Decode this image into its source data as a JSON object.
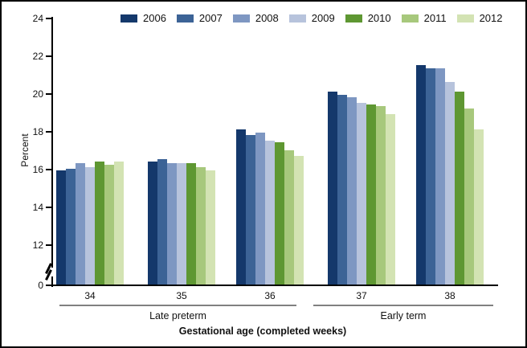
{
  "chart_data": {
    "type": "bar",
    "title": "",
    "ylabel": "Percent",
    "xlabel": "Gestational age (completed weeks)",
    "categories": [
      "34",
      "35",
      "36",
      "37",
      "38"
    ],
    "category_groups": [
      {
        "label": "Late preterm",
        "span": [
          0,
          2
        ]
      },
      {
        "label": "Early term",
        "span": [
          3,
          4
        ]
      }
    ],
    "series": [
      {
        "name": "2006",
        "color": "#14386b",
        "values": [
          15.9,
          16.4,
          18.1,
          20.1,
          21.5
        ]
      },
      {
        "name": "2007",
        "color": "#3c6396",
        "values": [
          16.0,
          16.5,
          17.8,
          19.9,
          21.3
        ]
      },
      {
        "name": "2008",
        "color": "#7e97c2",
        "values": [
          16.3,
          16.3,
          17.9,
          19.8,
          21.3
        ]
      },
      {
        "name": "2009",
        "color": "#b7c3dc",
        "values": [
          16.1,
          16.3,
          17.5,
          19.5,
          20.6
        ]
      },
      {
        "name": "2010",
        "color": "#5e9732",
        "values": [
          16.4,
          16.3,
          17.4,
          19.4,
          20.1
        ]
      },
      {
        "name": "2011",
        "color": "#a7c87c",
        "values": [
          16.2,
          16.1,
          17.0,
          19.3,
          19.2
        ]
      },
      {
        "name": "2012",
        "color": "#d3e3b3",
        "values": [
          16.4,
          15.9,
          16.7,
          18.9,
          18.1
        ]
      }
    ],
    "y_ticks": [
      "0",
      "12",
      "14",
      "16",
      "18",
      "20",
      "22",
      "24"
    ],
    "ylim_display": [
      12,
      24
    ],
    "axis_break_between": [
      0,
      12
    ],
    "legend_position": "top",
    "grid": false
  }
}
